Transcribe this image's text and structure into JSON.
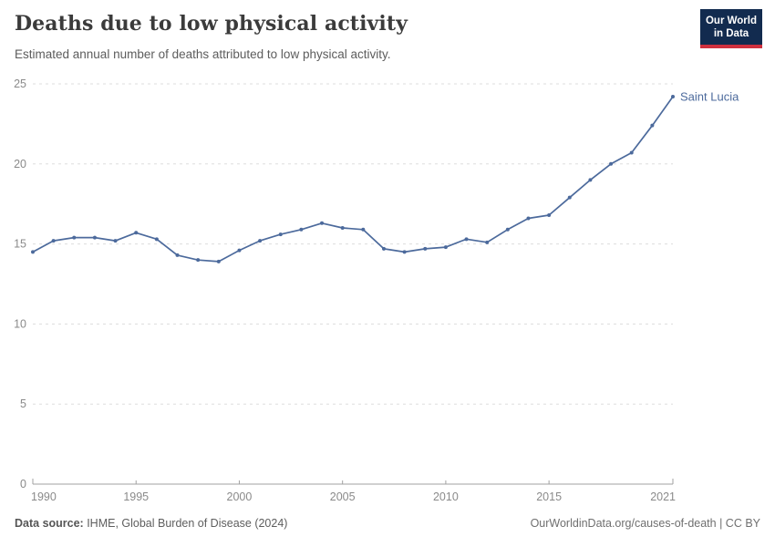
{
  "header": {
    "title": "Deaths due to low physical activity",
    "subtitle": "Estimated annual number of deaths attributed to low physical activity."
  },
  "logo": {
    "line1": "Our World",
    "line2": "in Data",
    "bg_color": "#122B4F",
    "bar_color": "#CF303E"
  },
  "chart_data": {
    "type": "line",
    "title": "Deaths due to low physical activity",
    "x": [
      1990,
      1991,
      1992,
      1993,
      1994,
      1995,
      1996,
      1997,
      1998,
      1999,
      2000,
      2001,
      2002,
      2003,
      2004,
      2005,
      2006,
      2007,
      2008,
      2009,
      2010,
      2011,
      2012,
      2013,
      2014,
      2015,
      2016,
      2017,
      2018,
      2019,
      2020,
      2021
    ],
    "series": [
      {
        "name": "Saint Lucia",
        "color": "#4C6A9C",
        "values": [
          14.5,
          15.2,
          15.4,
          15.4,
          15.2,
          15.7,
          15.3,
          14.3,
          14.0,
          13.9,
          14.6,
          15.2,
          15.6,
          15.9,
          16.3,
          16.0,
          15.9,
          14.7,
          14.5,
          14.7,
          14.8,
          15.3,
          15.1,
          15.9,
          16.6,
          16.8,
          17.9,
          19.0,
          20.0,
          20.7,
          22.4,
          24.2
        ]
      }
    ],
    "ylim": [
      0,
      25
    ],
    "yticks": [
      0,
      5,
      10,
      15,
      20,
      25
    ],
    "xticks": [
      1990,
      1995,
      2000,
      2005,
      2010,
      2015,
      2021
    ],
    "grid": "horizontal-dashed",
    "legend": "end-of-line-label"
  },
  "colors": {
    "line": "#4C6A9C",
    "grid": "#dddddd",
    "axis": "#a1a1a1",
    "tick_text": "#8a8a8a"
  },
  "footer": {
    "datasource_label": "Data source:",
    "datasource_value": " IHME, Global Burden of Disease (2024)",
    "credit": "OurWorldinData.org/causes-of-death | CC BY"
  }
}
